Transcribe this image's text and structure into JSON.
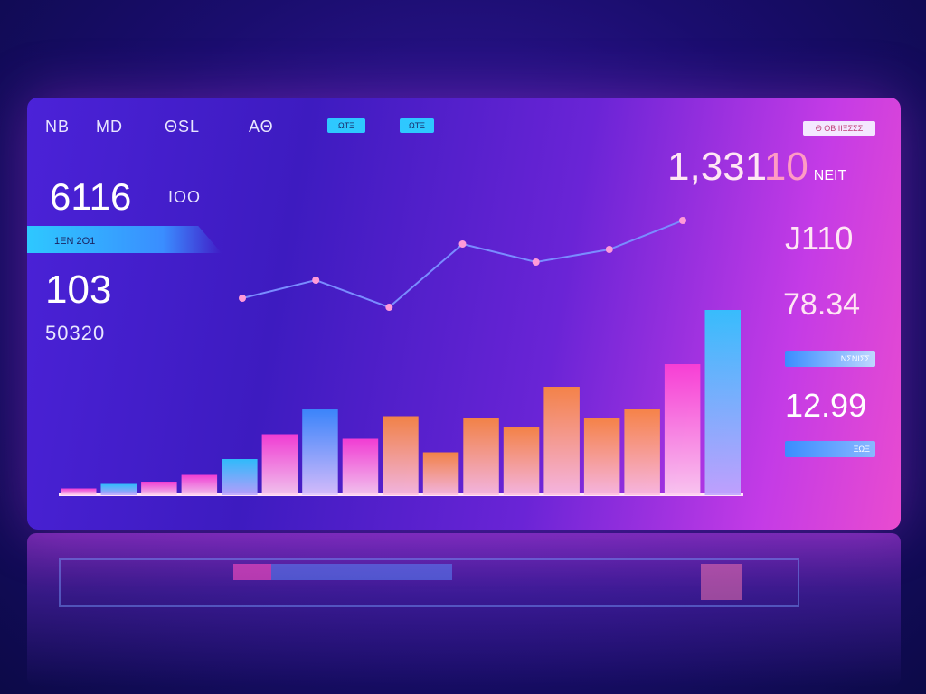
{
  "header": {
    "items": [
      "NB",
      "MD",
      "ΘSL",
      "ΑΘ"
    ],
    "chip1": "ΩΤΞ",
    "chip2": "ΩΤΞ",
    "right_badge": "Θ ΟΒ ΙΙΞΣΣΣ"
  },
  "left": {
    "metric1_value": "6116",
    "metric1_unit": "ΙΟΟ",
    "banner": "1ΕΝ 2Ο1",
    "metric2_value": "103",
    "metric2_sub": "50320"
  },
  "right": {
    "top_value": "1,331",
    "top_suffix": "10",
    "top_unit": "ΝΕΙΤ",
    "value2": "J110",
    "value3": "78.34",
    "badge1": "ΝΣΝΙΣΣ",
    "value4": "12.99",
    "badge2": "ΞΩΞ"
  },
  "colors": {
    "cyan": "#2ec8ff",
    "blue": "#3a8dff",
    "magenta": "#ff3fd4",
    "pink": "#ff5ab0",
    "orange": "#ff8a3c",
    "line": "#7a8cff"
  },
  "chart_data": {
    "type": "bar",
    "series": [
      {
        "values": [
          3,
          5,
          6,
          9,
          16,
          27,
          38,
          25,
          35,
          19,
          34,
          30,
          48,
          34,
          38,
          58,
          82
        ]
      }
    ],
    "line": {
      "values": [
        45,
        55,
        40,
        75,
        65,
        72,
        88
      ]
    },
    "ylim": [
      0,
      100
    ]
  }
}
